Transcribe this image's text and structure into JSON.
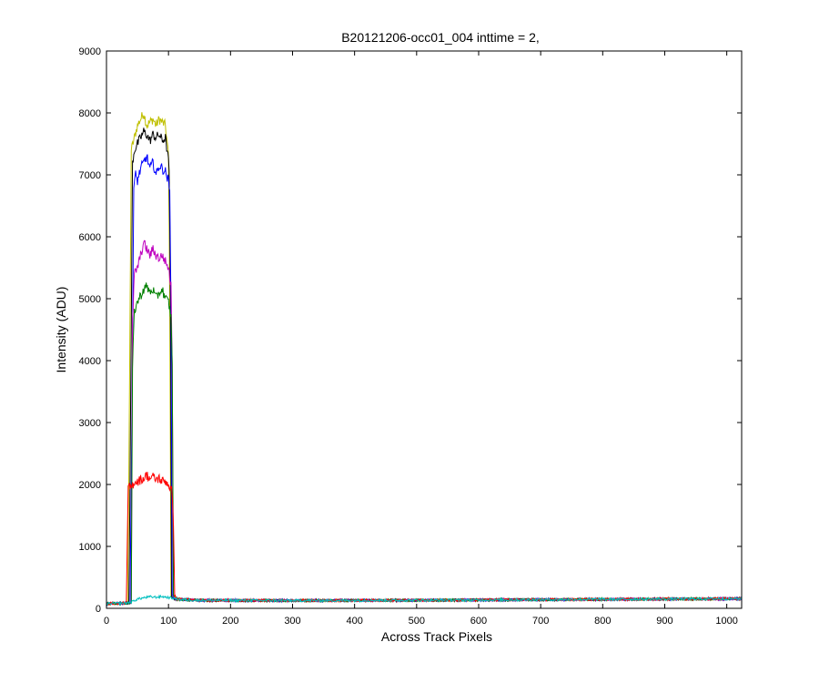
{
  "chart_data": {
    "type": "line",
    "title": "B20121206-occ01_004 inttime = 2,",
    "xlabel": "Across Track Pixels",
    "ylabel": "Intensity (ADU)",
    "xlim": [
      0,
      1024
    ],
    "ylim": [
      0,
      9000
    ],
    "xticks": [
      0,
      100,
      200,
      300,
      400,
      500,
      600,
      700,
      800,
      900,
      1000
    ],
    "yticks": [
      0,
      1000,
      2000,
      3000,
      4000,
      5000,
      6000,
      7000,
      8000,
      9000
    ],
    "grid": false,
    "legend": "none",
    "series": [
      {
        "color": "#bfbf00",
        "values": [
          [
            0,
            75
          ],
          [
            34,
            85
          ],
          [
            36,
            2000
          ],
          [
            40,
            7400
          ],
          [
            45,
            7600
          ],
          [
            50,
            7800
          ],
          [
            55,
            7900
          ],
          [
            60,
            8000
          ],
          [
            65,
            7800
          ],
          [
            70,
            7850
          ],
          [
            75,
            7900
          ],
          [
            80,
            7800
          ],
          [
            85,
            7900
          ],
          [
            90,
            7850
          ],
          [
            95,
            7800
          ],
          [
            98,
            7500
          ],
          [
            100,
            7300
          ],
          [
            102,
            5000
          ],
          [
            104,
            200
          ],
          [
            110,
            150
          ],
          [
            150,
            130
          ],
          [
            300,
            125
          ],
          [
            500,
            130
          ],
          [
            700,
            140
          ],
          [
            900,
            150
          ],
          [
            1024,
            155
          ]
        ]
      },
      {
        "color": "#000000",
        "values": [
          [
            0,
            75
          ],
          [
            36,
            85
          ],
          [
            38,
            2000
          ],
          [
            42,
            7200
          ],
          [
            45,
            7400
          ],
          [
            50,
            7500
          ],
          [
            55,
            7600
          ],
          [
            60,
            7700
          ],
          [
            65,
            7650
          ],
          [
            70,
            7550
          ],
          [
            75,
            7650
          ],
          [
            80,
            7600
          ],
          [
            85,
            7650
          ],
          [
            90,
            7550
          ],
          [
            95,
            7600
          ],
          [
            99,
            7300
          ],
          [
            101,
            7100
          ],
          [
            103,
            5000
          ],
          [
            105,
            200
          ],
          [
            110,
            150
          ],
          [
            150,
            130
          ],
          [
            300,
            125
          ],
          [
            500,
            130
          ],
          [
            700,
            140
          ],
          [
            900,
            150
          ],
          [
            1024,
            155
          ]
        ]
      },
      {
        "color": "#0000ff",
        "values": [
          [
            0,
            75
          ],
          [
            38,
            85
          ],
          [
            40,
            2000
          ],
          [
            44,
            6800
          ],
          [
            47,
            7000
          ],
          [
            50,
            6900
          ],
          [
            55,
            7100
          ],
          [
            60,
            7200
          ],
          [
            65,
            7300
          ],
          [
            70,
            7100
          ],
          [
            75,
            7200
          ],
          [
            80,
            7000
          ],
          [
            85,
            7150
          ],
          [
            90,
            7100
          ],
          [
            95,
            7050
          ],
          [
            100,
            6900
          ],
          [
            102,
            6700
          ],
          [
            104,
            5000
          ],
          [
            106,
            200
          ],
          [
            110,
            150
          ],
          [
            150,
            130
          ],
          [
            300,
            125
          ],
          [
            500,
            130
          ],
          [
            700,
            140
          ],
          [
            900,
            150
          ],
          [
            1024,
            155
          ]
        ]
      },
      {
        "color": "#bf00bf",
        "values": [
          [
            0,
            75
          ],
          [
            40,
            85
          ],
          [
            42,
            4600
          ],
          [
            45,
            5400
          ],
          [
            50,
            5500
          ],
          [
            55,
            5700
          ],
          [
            60,
            5900
          ],
          [
            65,
            5800
          ],
          [
            70,
            5700
          ],
          [
            75,
            5800
          ],
          [
            80,
            5700
          ],
          [
            85,
            5650
          ],
          [
            90,
            5700
          ],
          [
            95,
            5600
          ],
          [
            100,
            5500
          ],
          [
            104,
            5200
          ],
          [
            106,
            3900
          ],
          [
            108,
            200
          ],
          [
            112,
            150
          ],
          [
            150,
            130
          ],
          [
            300,
            125
          ],
          [
            500,
            130
          ],
          [
            700,
            140
          ],
          [
            900,
            150
          ],
          [
            1024,
            155
          ]
        ]
      },
      {
        "color": "#008000",
        "values": [
          [
            0,
            75
          ],
          [
            40,
            85
          ],
          [
            42,
            3900
          ],
          [
            45,
            4800
          ],
          [
            50,
            4950
          ],
          [
            55,
            5050
          ],
          [
            60,
            5150
          ],
          [
            65,
            5200
          ],
          [
            70,
            5100
          ],
          [
            75,
            5150
          ],
          [
            80,
            5000
          ],
          [
            85,
            5100
          ],
          [
            90,
            5150
          ],
          [
            95,
            5000
          ],
          [
            100,
            4950
          ],
          [
            104,
            4700
          ],
          [
            106,
            4000
          ],
          [
            108,
            200
          ],
          [
            112,
            150
          ],
          [
            150,
            130
          ],
          [
            300,
            125
          ],
          [
            500,
            130
          ],
          [
            700,
            140
          ],
          [
            900,
            150
          ],
          [
            1024,
            155
          ]
        ]
      },
      {
        "color": "#ff0000",
        "values": [
          [
            0,
            75
          ],
          [
            32,
            85
          ],
          [
            35,
            1950
          ],
          [
            40,
            1950
          ],
          [
            45,
            2050
          ],
          [
            50,
            2050
          ],
          [
            55,
            2080
          ],
          [
            60,
            2100
          ],
          [
            65,
            2150
          ],
          [
            70,
            2100
          ],
          [
            75,
            2120
          ],
          [
            80,
            2080
          ],
          [
            85,
            2100
          ],
          [
            90,
            2050
          ],
          [
            95,
            2060
          ],
          [
            100,
            2000
          ],
          [
            105,
            1900
          ],
          [
            108,
            1400
          ],
          [
            110,
            200
          ],
          [
            114,
            150
          ],
          [
            150,
            130
          ],
          [
            300,
            125
          ],
          [
            500,
            130
          ],
          [
            700,
            140
          ],
          [
            900,
            150
          ],
          [
            1024,
            155
          ]
        ]
      },
      {
        "color": "#00bfbf",
        "values": [
          [
            0,
            75
          ],
          [
            30,
            85
          ],
          [
            40,
            100
          ],
          [
            50,
            150
          ],
          [
            60,
            170
          ],
          [
            70,
            185
          ],
          [
            80,
            180
          ],
          [
            90,
            190
          ],
          [
            100,
            175
          ],
          [
            110,
            160
          ],
          [
            120,
            140
          ],
          [
            150,
            130
          ],
          [
            300,
            125
          ],
          [
            500,
            130
          ],
          [
            700,
            140
          ],
          [
            900,
            150
          ],
          [
            1024,
            155
          ]
        ]
      }
    ]
  }
}
